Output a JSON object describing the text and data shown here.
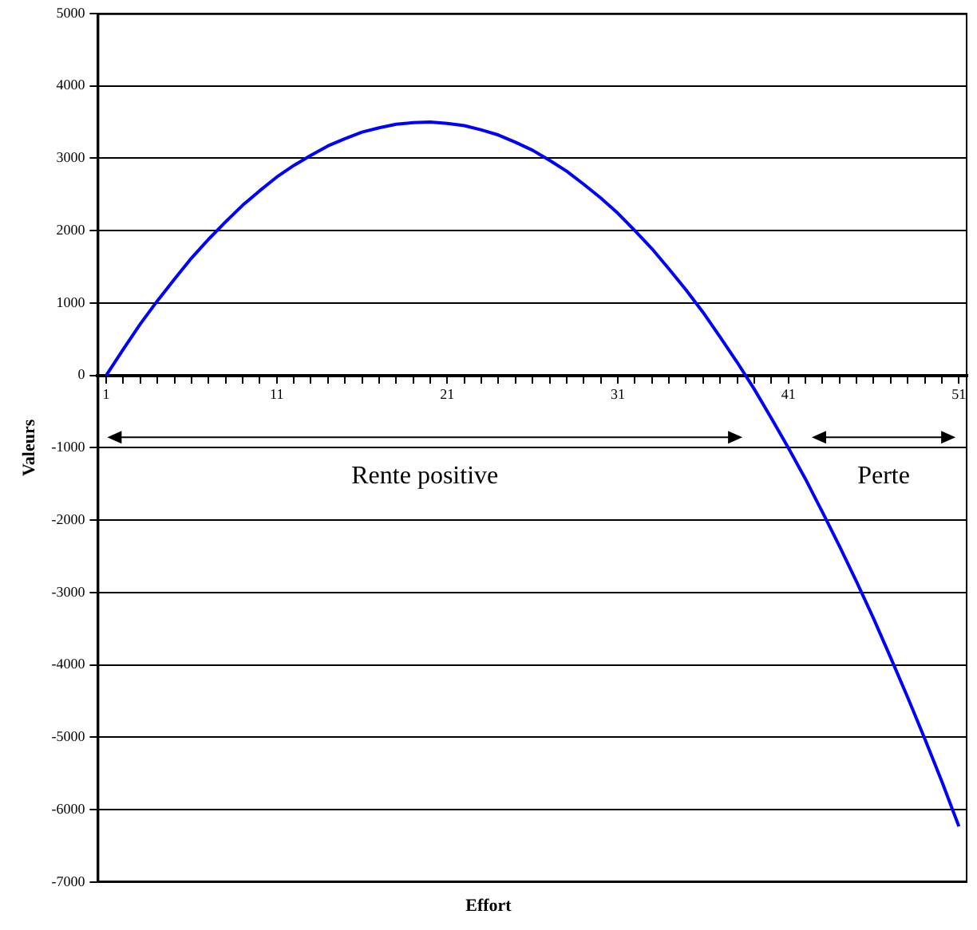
{
  "chart_data": {
    "type": "line",
    "xlabel": "Effort",
    "ylabel": "Valeurs",
    "categories": [
      "1",
      null,
      null,
      null,
      null,
      null,
      null,
      null,
      null,
      null,
      "11",
      null,
      null,
      null,
      null,
      null,
      null,
      null,
      null,
      null,
      "21",
      null,
      null,
      null,
      null,
      null,
      null,
      null,
      null,
      null,
      "31",
      null,
      null,
      null,
      null,
      null,
      null,
      null,
      null,
      null,
      "41",
      null,
      null,
      null,
      null,
      null,
      null,
      null,
      null,
      null,
      "51"
    ],
    "series": [
      {
        "color": "#0000ff",
        "values": [
          0,
          360,
          710,
          1030,
          1330,
          1620,
          1880,
          2120,
          2350,
          2550,
          2740,
          2900,
          3040,
          3170,
          3270,
          3360,
          3420,
          3470,
          3490,
          3500,
          3480,
          3450,
          3390,
          3320,
          3220,
          3110,
          2970,
          2820,
          2640,
          2450,
          2240,
          2000,
          1750,
          1470,
          1180,
          870,
          530,
          180,
          -190,
          -590,
          -1000,
          -1430,
          -1890,
          -2360,
          -2850,
          -3360,
          -3900,
          -4450,
          -5020,
          -5610,
          -6230
        ]
      }
    ],
    "ylim": [
      -7000,
      5000
    ],
    "yticks": [
      -7000,
      -6000,
      -5000,
      -4000,
      -3000,
      -2000,
      -1000,
      0,
      1000,
      2000,
      3000,
      4000,
      5000
    ],
    "grid": "y",
    "legend": false,
    "marker": "none",
    "line_style": "solid",
    "annotations": [
      "Rente positive",
      "Perte"
    ]
  }
}
